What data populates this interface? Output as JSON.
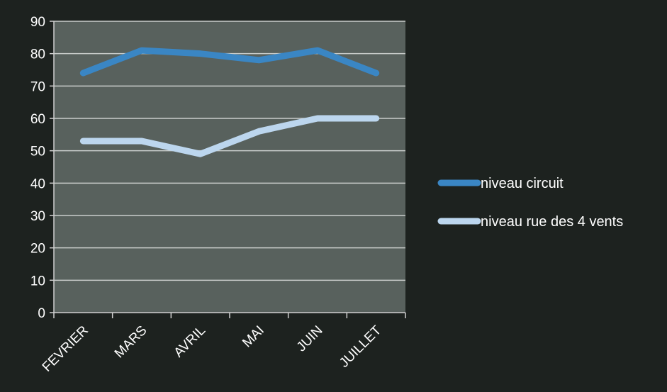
{
  "chart_data": {
    "type": "line",
    "categories": [
      "FEVRIER",
      "MARS",
      "AVRIL",
      "MAI",
      "JUIN",
      "JUILLET"
    ],
    "series": [
      {
        "name": "niveau circuit",
        "values": [
          74,
          81,
          80,
          78,
          81,
          74
        ],
        "color": "#3a86c4"
      },
      {
        "name": "niveau rue des 4 vents",
        "values": [
          53,
          53,
          49,
          56,
          60,
          60
        ],
        "color": "#bcd6ee"
      }
    ],
    "ylim": [
      0,
      90
    ],
    "yticks": [
      "0",
      "10",
      "20",
      "30",
      "40",
      "50",
      "60",
      "70",
      "80",
      "90"
    ],
    "grid": true,
    "legend_position": "right",
    "plot_background": "#58615d",
    "background": "#1d221f"
  }
}
